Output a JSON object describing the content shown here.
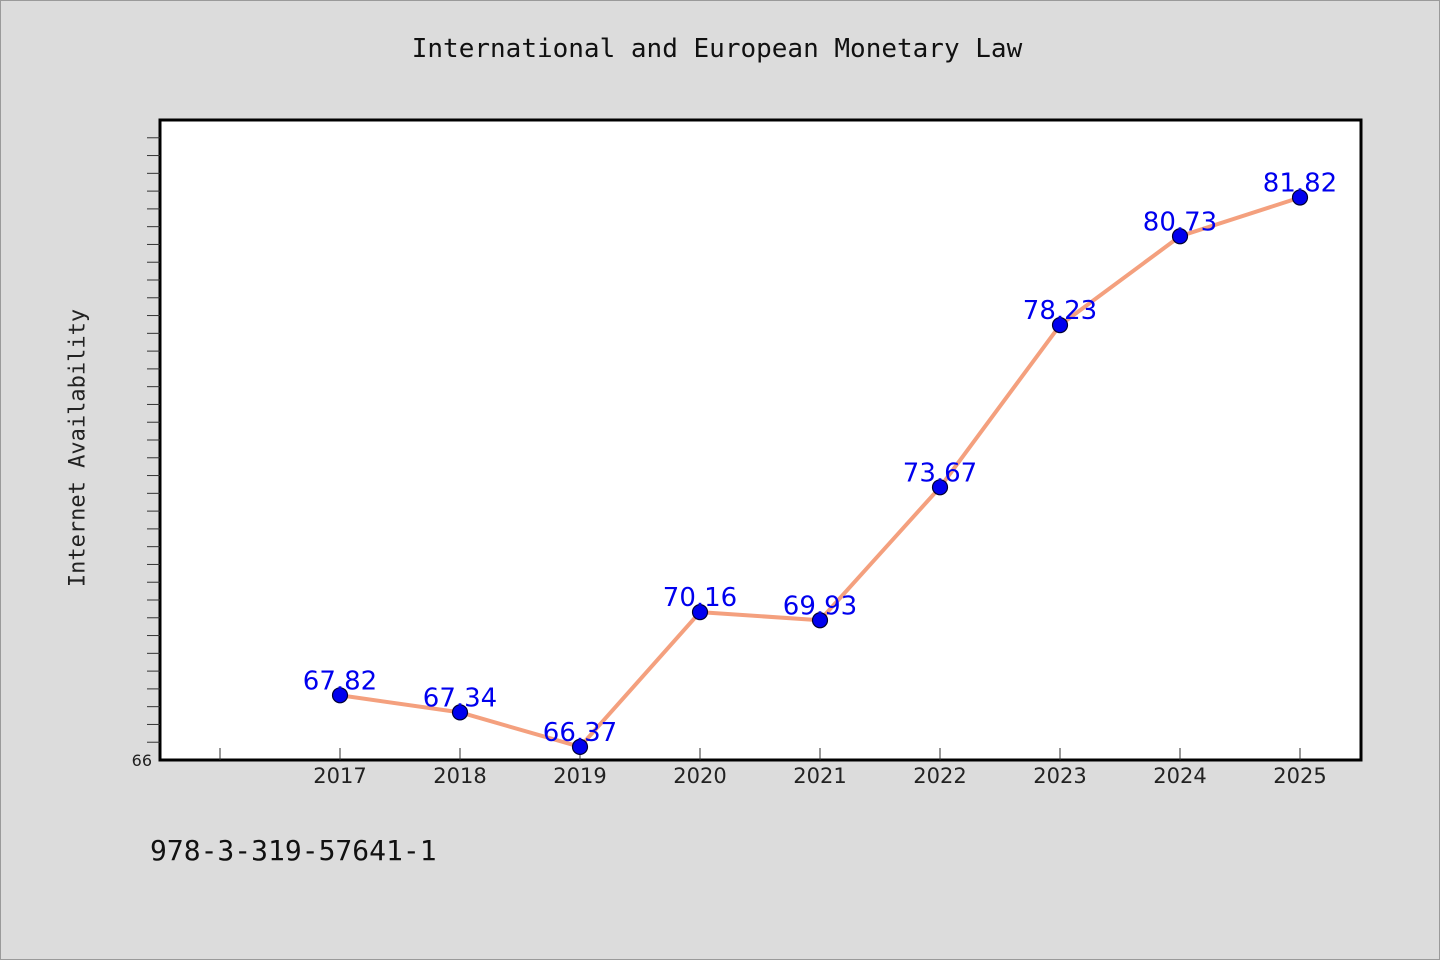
{
  "chart_data": {
    "type": "line",
    "title": "International and European Monetary Law",
    "xlabel": "",
    "ylabel": "Internet Availability",
    "categories": [
      "2017",
      "2018",
      "2019",
      "2020",
      "2021",
      "2022",
      "2023",
      "2024",
      "2025"
    ],
    "series": [
      {
        "values": [
          67.82,
          67.34,
          66.37,
          70.16,
          69.93,
          73.67,
          78.23,
          80.73,
          81.82
        ],
        "data_labels": [
          "67.82",
          "67.34",
          "66.37",
          "70.16",
          "69.93",
          "73.67",
          "78.23",
          "80.73",
          "81.82"
        ]
      }
    ],
    "ylim": [
      66,
      84
    ],
    "y_tick_labels": [
      "66"
    ],
    "grid": false,
    "legend": "none",
    "colors": {
      "line": "#f4a07e",
      "marker": "#0000ee",
      "marker_edge": "#000033",
      "data_label": "#0000ee",
      "plot_background": "#ffffff",
      "figure_background": "#dcdcdc"
    }
  },
  "footer": {
    "text": "978-3-319-57641-1"
  }
}
